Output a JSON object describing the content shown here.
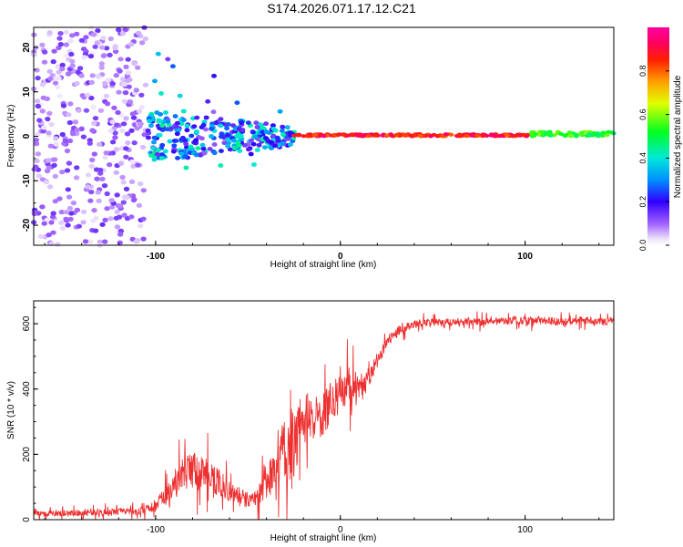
{
  "title": "S174.2026.071.17.12.C21",
  "chart_data": [
    {
      "type": "heatmap",
      "xlabel": "Height of straight line (km)",
      "ylabel": "Frequency (Hz)",
      "xlim": [
        -166,
        148
      ],
      "ylim": [
        -24.5,
        24.5
      ],
      "x_ticks": [
        -100,
        0,
        100
      ],
      "x_tick_labels": [
        "-100",
        "0",
        "100"
      ],
      "y_ticks": [
        -20,
        -10,
        0,
        10,
        20
      ],
      "y_tick_labels": [
        "-20",
        "-10",
        "0",
        "10",
        "20"
      ],
      "colorbar": {
        "label": "Normalized spectral amplitude",
        "range": [
          0,
          1
        ],
        "ticks": [
          0.0,
          0.2,
          0.4,
          0.6,
          0.8
        ],
        "tick_labels": [
          "0.0",
          "0.2",
          "0.4",
          "0.6",
          "0.8"
        ],
        "colormap": "rainbow: white-lavender-violet-blue-cyan-green-yellow-orange-red-magenta"
      },
      "regions": [
        {
          "description": "scattered noise",
          "x": [
            -166,
            -105
          ],
          "freq": [
            -24.5,
            24.5
          ],
          "amplitude": [
            0.02,
            0.15
          ]
        },
        {
          "description": "broadened signal",
          "x": [
            -105,
            -25
          ],
          "freq": [
            -6,
            6
          ],
          "amplitude": [
            0.1,
            0.45
          ]
        },
        {
          "description": "narrow tone",
          "x": [
            -25,
            103
          ],
          "freq": [
            0,
            0.5
          ],
          "amplitude": [
            0.8,
            0.95
          ]
        },
        {
          "description": "narrow tone, weaker",
          "x": [
            103,
            148
          ],
          "freq": [
            0,
            1
          ],
          "amplitude": [
            0.45,
            0.6
          ]
        }
      ]
    },
    {
      "type": "line",
      "xlabel": "Height of straight line (km)",
      "ylabel": "SNR (10 * v/v)",
      "xlim": [
        -166,
        148
      ],
      "ylim": [
        0,
        670
      ],
      "x_ticks": [
        -100,
        0,
        100
      ],
      "x_tick_labels": [
        "-100",
        "0",
        "100"
      ],
      "y_ticks": [
        0,
        200,
        400,
        600
      ],
      "y_tick_labels": [
        "0",
        "200",
        "400",
        "600"
      ],
      "series": [
        {
          "name": "SNR",
          "color": "#ee3030",
          "x": [
            -166,
            -150,
            -130,
            -110,
            -100,
            -95,
            -90,
            -85,
            -80,
            -75,
            -70,
            -65,
            -60,
            -55,
            -50,
            -45,
            -40,
            -35,
            -30,
            -25,
            -20,
            -15,
            -10,
            -5,
            0,
            5,
            10,
            15,
            20,
            25,
            30,
            35,
            40,
            50,
            60,
            70,
            80,
            90,
            100,
            110,
            120,
            130,
            140,
            148
          ],
          "values": [
            20,
            20,
            22,
            25,
            40,
            70,
            110,
            140,
            150,
            140,
            130,
            110,
            90,
            70,
            60,
            75,
            110,
            160,
            220,
            250,
            300,
            310,
            320,
            360,
            380,
            410,
            390,
            430,
            490,
            540,
            575,
            590,
            600,
            605,
            605,
            608,
            605,
            610,
            608,
            610,
            605,
            610,
            608,
            610
          ],
          "noise_amplitude": [
            18,
            18,
            18,
            18,
            30,
            50,
            70,
            90,
            100,
            90,
            80,
            70,
            60,
            50,
            45,
            60,
            90,
            120,
            160,
            170,
            160,
            120,
            120,
            110,
            100,
            100,
            90,
            60,
            40,
            30,
            25,
            25,
            20,
            20,
            20,
            20,
            20,
            20,
            20,
            20,
            20,
            20,
            20,
            20
          ]
        }
      ]
    }
  ]
}
